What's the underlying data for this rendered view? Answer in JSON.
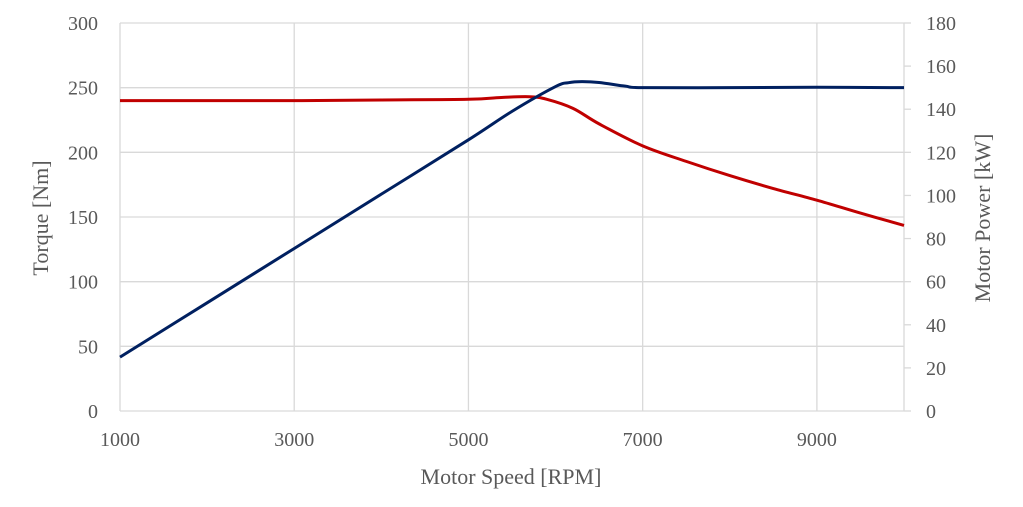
{
  "chart_data": {
    "type": "line",
    "xlabel": "Motor Speed [RPM]",
    "ylabel_left": "Torque [Nm]",
    "ylabel_right": "Motor Power [kW]",
    "xlim": [
      1000,
      10000
    ],
    "ylim_left": [
      0,
      300
    ],
    "ylim_right": [
      0,
      180
    ],
    "x_ticks": [
      1000,
      3000,
      5000,
      7000,
      9000
    ],
    "y_left_ticks": [
      0,
      50,
      100,
      150,
      200,
      250,
      300
    ],
    "y_right_ticks": [
      0,
      20,
      40,
      60,
      80,
      100,
      120,
      140,
      160,
      180
    ],
    "grid": true,
    "legend": "none",
    "series": [
      {
        "axis": "left",
        "color": "#c00000",
        "points": [
          [
            1000,
            240
          ],
          [
            2000,
            240
          ],
          [
            3000,
            240
          ],
          [
            4000,
            240.5
          ],
          [
            5000,
            241
          ],
          [
            5400,
            242.5
          ],
          [
            5700,
            243
          ],
          [
            5900,
            241
          ],
          [
            6200,
            234
          ],
          [
            6500,
            222
          ],
          [
            7000,
            205
          ],
          [
            7500,
            193
          ],
          [
            8000,
            182
          ],
          [
            8500,
            172
          ],
          [
            9000,
            163
          ],
          [
            9500,
            153
          ],
          [
            10000,
            143.5
          ]
        ]
      },
      {
        "axis": "right",
        "color": "#002060",
        "points": [
          [
            1000,
            25
          ],
          [
            2000,
            50.2
          ],
          [
            3000,
            75.4
          ],
          [
            4000,
            100.6
          ],
          [
            5000,
            125.8
          ],
          [
            5500,
            139
          ],
          [
            6000,
            150.5
          ],
          [
            6150,
            152.3
          ],
          [
            6300,
            152.8
          ],
          [
            6500,
            152.4
          ],
          [
            6800,
            150.7
          ],
          [
            7000,
            150
          ],
          [
            8000,
            150
          ],
          [
            9000,
            150.2
          ],
          [
            10000,
            150
          ]
        ]
      }
    ]
  }
}
